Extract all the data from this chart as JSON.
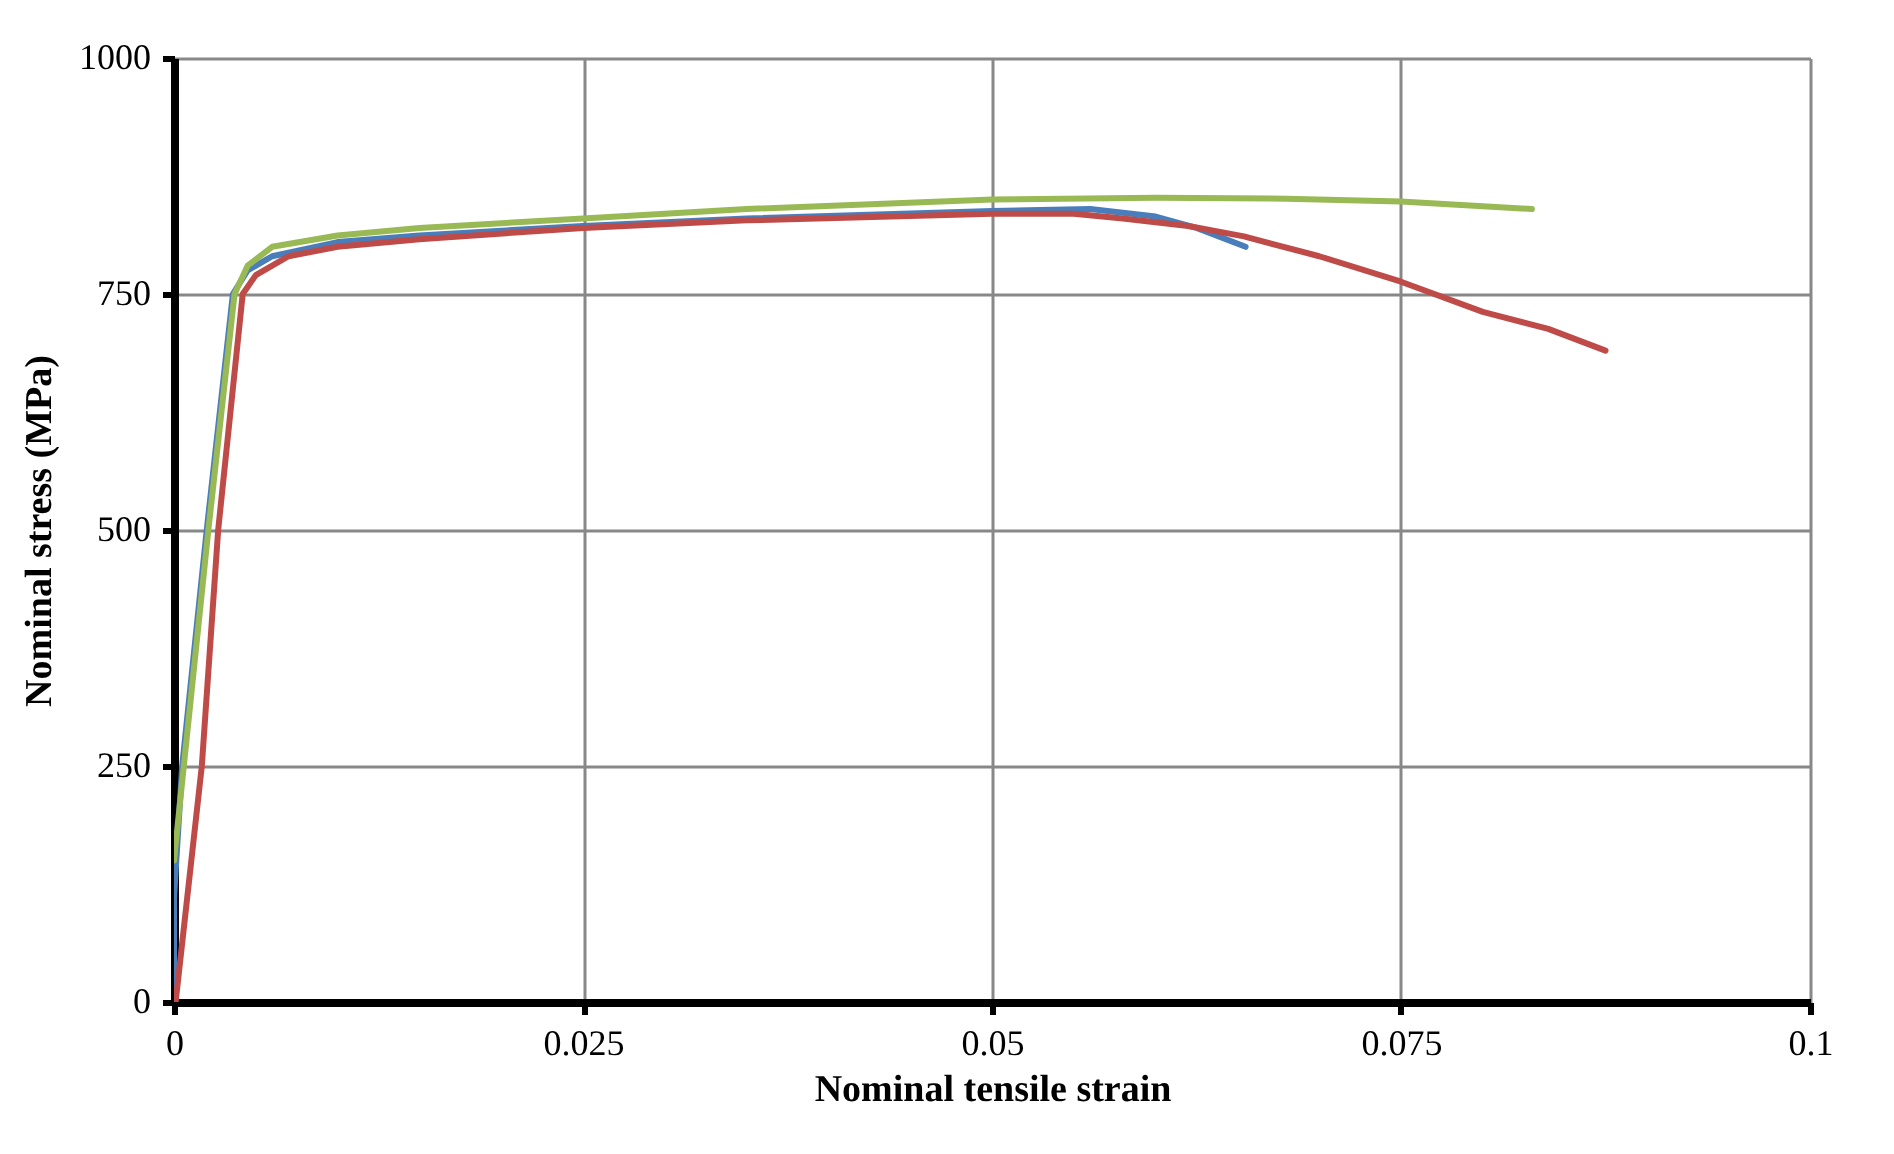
{
  "chart_data": {
    "type": "line",
    "xlabel": "Nominal tensile strain",
    "ylabel": "Nominal stress (MPa)",
    "xlim": [
      0,
      0.1
    ],
    "ylim": [
      0,
      1000
    ],
    "xticks": [
      0,
      0.025,
      0.05,
      0.075,
      0.1
    ],
    "yticks": [
      0,
      250,
      500,
      750,
      1000
    ],
    "grid": true,
    "legend": false,
    "marker": "none",
    "line_style": "solid",
    "series": [
      {
        "color": "#4a7ebb",
        "x": [
          0,
          0,
          0.0005,
          0.002,
          0.0036,
          0.0045,
          0.006,
          0.01,
          0.015,
          0.025,
          0.035,
          0.05,
          0.056,
          0.06,
          0.0625,
          0.0655
        ],
        "values": [
          0,
          110,
          250,
          500,
          750,
          775,
          790,
          805,
          812,
          822,
          830,
          838,
          840,
          832,
          820,
          800
        ]
      },
      {
        "color": "#be4b48",
        "x": [
          0.0001,
          0.0017,
          0.0027,
          0.0042,
          0.005,
          0.007,
          0.01,
          0.015,
          0.025,
          0.035,
          0.05,
          0.055,
          0.058,
          0.062,
          0.0654,
          0.07,
          0.075,
          0.08,
          0.084,
          0.0875
        ],
        "values": [
          0,
          250,
          500,
          750,
          770,
          790,
          800,
          808,
          820,
          828,
          835,
          835,
          830,
          822,
          811,
          790,
          763,
          731,
          713,
          690
        ]
      },
      {
        "color": "#98b954",
        "x": [
          0,
          0.0006,
          0.0021,
          0.0037,
          0.0045,
          0.006,
          0.01,
          0.015,
          0.025,
          0.035,
          0.05,
          0.06,
          0.068,
          0.075,
          0.08,
          0.083
        ],
        "values": [
          150,
          250,
          500,
          750,
          780,
          800,
          812,
          820,
          830,
          840,
          850,
          852,
          851,
          848,
          843,
          840
        ]
      }
    ]
  }
}
